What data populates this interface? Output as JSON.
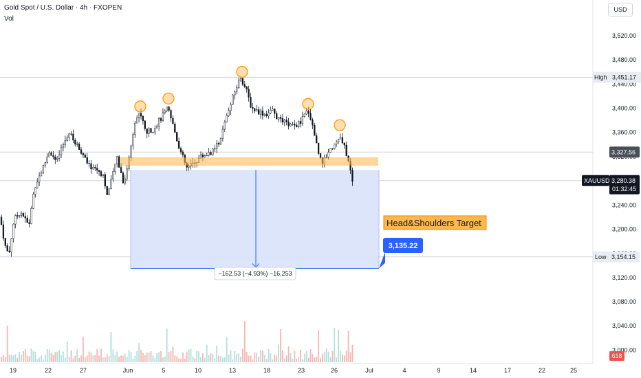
{
  "header": {
    "title": "Gold Spot / U.S. Dollar · 4h · FXOPEN",
    "vol_label": "Vol",
    "currency": "USD"
  },
  "chart_data": {
    "type": "candlestick",
    "symbol": "XAUUSD",
    "timeframe": "4h",
    "ylim": [
      2980,
      3545
    ],
    "y_ticks": [
      3000,
      3040,
      3080,
      3120,
      3160,
      3200,
      3240,
      3280,
      3320,
      3360,
      3400,
      3440,
      3480,
      3520
    ],
    "y_tick_labels": [
      "3,000.00",
      "3,040.00",
      "3,080.00",
      "3,120.00",
      "3,160.00",
      "3,200.00",
      "3,240.00",
      "3,280.00",
      "3,320.00",
      "3,360.00",
      "3,400.00",
      "3,440.00",
      "3,480.00",
      "3,520.00"
    ],
    "x_tick_labels": [
      "19",
      "22",
      "27",
      "Jun",
      "5",
      "10",
      "13",
      "18",
      "23",
      "26",
      "Jul",
      "4",
      "9",
      "14",
      "17",
      "22",
      "25"
    ],
    "price_path": [
      [
        0,
        3220
      ],
      [
        8,
        3170
      ],
      [
        13,
        3158
      ],
      [
        20,
        3215
      ],
      [
        30,
        3230
      ],
      [
        42,
        3205
      ],
      [
        50,
        3270
      ],
      [
        62,
        3300
      ],
      [
        72,
        3330
      ],
      [
        82,
        3310
      ],
      [
        92,
        3340
      ],
      [
        100,
        3360
      ],
      [
        108,
        3345
      ],
      [
        118,
        3330
      ],
      [
        128,
        3305
      ],
      [
        140,
        3300
      ],
      [
        150,
        3290
      ],
      [
        156,
        3255
      ],
      [
        162,
        3280
      ],
      [
        170,
        3320
      ],
      [
        180,
        3275
      ],
      [
        188,
        3320
      ],
      [
        196,
        3380
      ],
      [
        204,
        3392
      ],
      [
        212,
        3360
      ],
      [
        222,
        3365
      ],
      [
        232,
        3380
      ],
      [
        244,
        3400
      ],
      [
        252,
        3370
      ],
      [
        262,
        3330
      ],
      [
        272,
        3300
      ],
      [
        282,
        3310
      ],
      [
        292,
        3320
      ],
      [
        302,
        3325
      ],
      [
        312,
        3330
      ],
      [
        322,
        3355
      ],
      [
        332,
        3395
      ],
      [
        342,
        3430
      ],
      [
        350,
        3452
      ],
      [
        358,
        3430
      ],
      [
        366,
        3400
      ],
      [
        376,
        3395
      ],
      [
        386,
        3390
      ],
      [
        396,
        3395
      ],
      [
        406,
        3380
      ],
      [
        416,
        3375
      ],
      [
        426,
        3370
      ],
      [
        436,
        3375
      ],
      [
        448,
        3398
      ],
      [
        456,
        3365
      ],
      [
        462,
        3330
      ],
      [
        470,
        3310
      ],
      [
        478,
        3330
      ],
      [
        486,
        3340
      ],
      [
        494,
        3352
      ],
      [
        502,
        3332
      ],
      [
        508,
        3305
      ],
      [
        513,
        3275
      ]
    ],
    "candle_spacing_px": 2.9,
    "volume_seed": 7,
    "head_and_shoulders": {
      "neckline_low": 3306,
      "neckline_high": 3318,
      "measured_move_from": 3298,
      "target": 3135.22,
      "target_label": "3,135.22",
      "pattern_label": "Head&Shoulders Target",
      "measurement_label": "−162.53 (−4.93%) −16,253",
      "peaks": [
        {
          "name": "left-shoulder-a",
          "price": 3394
        },
        {
          "name": "left-shoulder-b",
          "price": 3407
        },
        {
          "name": "head",
          "price": 3451.17
        },
        {
          "name": "right-shoulder-a",
          "price": 3398
        },
        {
          "name": "right-shoulder-b",
          "price": 3363
        }
      ]
    },
    "levels": {
      "high": {
        "label": "High",
        "value": 3451.17,
        "value_label": "3,451.17"
      },
      "prev_close": {
        "value": 3327.56,
        "value_label": "3,327.56"
      },
      "last": {
        "symbol": "XAUUSD",
        "value": 3280.38,
        "value_label": "3,280.38",
        "countdown": "01:32:45"
      },
      "low": {
        "label": "Low",
        "value": 3154.15,
        "value_label": "3,154.15"
      }
    },
    "volume_badge": "618",
    "colors": {
      "up": "#26a69a",
      "down": "#ef5350",
      "candle": "#131722",
      "vol_up": "#b2dfdb",
      "vol_down": "#f5b7b1",
      "zone_fill": "#dbe4fb",
      "zone_border": "#2962ff",
      "orange": "#ff9800",
      "orange_fill": "#ffb74d",
      "target_tag": "#2962ff",
      "grid": "#e0e3eb",
      "last_tag": "#131722",
      "vol_badge": "#ef5350"
    }
  }
}
